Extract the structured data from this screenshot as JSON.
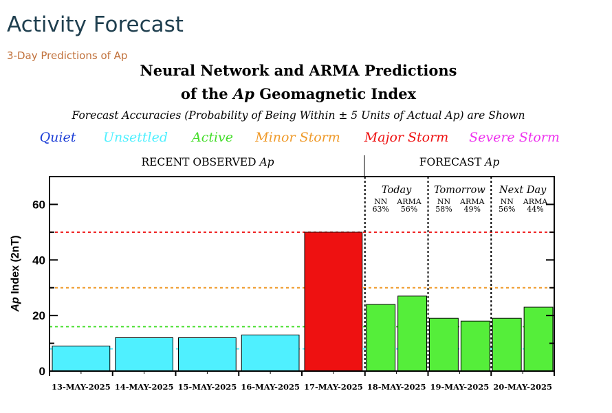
{
  "page": {
    "title": "Activity Forecast",
    "subtitle": "3-Day Predictions of Ap"
  },
  "chart_data": {
    "type": "bar",
    "title_line1": "Neural Network and ARMA Predictions",
    "title_line2_prefix": "of the ",
    "title_line2_italic": "Ap",
    "title_line2_suffix": " Geomagnetic Index",
    "subtitle": "Forecast Accuracies (Probability of Being Within ± 5 Units of Actual Ap) are Shown",
    "legend": [
      {
        "label": "Quiet",
        "color": "#1a3cd6"
      },
      {
        "label": "Unsettled",
        "color": "#4ff0ff"
      },
      {
        "label": "Active",
        "color": "#44dd2a"
      },
      {
        "label": "Minor Storm",
        "color": "#ef9a2a"
      },
      {
        "label": "Major Storm",
        "color": "#ee1111"
      },
      {
        "label": "Severe Storm",
        "color": "#ee33ee"
      }
    ],
    "section_observed_label": "RECENT OBSERVED ",
    "section_forecast_label": "FORECAST ",
    "section_italic": "Ap",
    "ylabel_italic": "Ap",
    "ylabel_rest": " Index (2nT)",
    "ylim": [
      0,
      70
    ],
    "yticks": [
      0,
      20,
      40,
      60
    ],
    "thresholds": [
      {
        "value": 50,
        "color": "#ee1111"
      },
      {
        "value": 30,
        "color": "#ef9a2a"
      },
      {
        "value": 16,
        "color": "#44dd2a"
      },
      {
        "value": 8,
        "color": "#4ff0ff"
      }
    ],
    "categories": [
      "13-MAY-2025",
      "14-MAY-2025",
      "15-MAY-2025",
      "16-MAY-2025",
      "17-MAY-2025",
      "18-MAY-2025",
      "19-MAY-2025",
      "20-MAY-2025"
    ],
    "observed_values": [
      9,
      12,
      12,
      13,
      50
    ],
    "observed_colors": [
      "#4ff0ff",
      "#4ff0ff",
      "#4ff0ff",
      "#4ff0ff",
      "#ee1111"
    ],
    "forecast": [
      {
        "day_label": "Today",
        "nn_label": "NN",
        "arma_label": "ARMA",
        "nn_accuracy": "63%",
        "arma_accuracy": "56%",
        "nn_value": 24,
        "arma_value": 27,
        "color": "#55ee3a"
      },
      {
        "day_label": "Tomorrow",
        "nn_label": "NN",
        "arma_label": "ARMA",
        "nn_accuracy": "58%",
        "arma_accuracy": "49%",
        "nn_value": 19,
        "arma_value": 18,
        "color": "#55ee3a"
      },
      {
        "day_label": "Next Day",
        "nn_label": "NN",
        "arma_label": "ARMA",
        "nn_accuracy": "56%",
        "arma_accuracy": "44%",
        "nn_value": 19,
        "arma_value": 23,
        "color": "#55ee3a"
      }
    ]
  }
}
